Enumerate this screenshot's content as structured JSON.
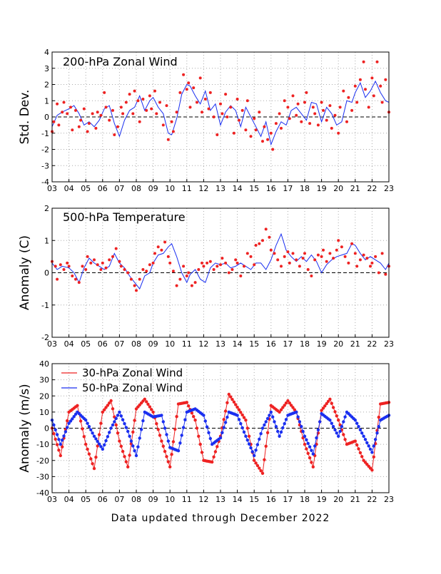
{
  "footer": "Data updated through December 2022",
  "x_ticks": [
    "03",
    "04",
    "05",
    "06",
    "07",
    "08",
    "09",
    "10",
    "11",
    "12",
    "13",
    "14",
    "15",
    "16",
    "17",
    "18",
    "19",
    "20",
    "21",
    "22",
    "23"
  ],
  "colors": {
    "red": "#ee2222",
    "blue": "#1a2ff0",
    "grid": "#aaaaaa"
  },
  "chart_data": [
    {
      "type": "scatter",
      "title": "200-hPa Zonal Wind",
      "ylabel": "Std. Dev.",
      "xlabel": "",
      "xlim": [
        2003,
        2023
      ],
      "ylim": [
        -4,
        4
      ],
      "y_ticks": [
        "4",
        "3",
        "2",
        "1",
        "0",
        "-1",
        "-2",
        "-3",
        "-4"
      ],
      "grid": true,
      "series": [
        {
          "name": "",
          "color": "#1a2ff0",
          "style": "line",
          "x": [
            2003.0,
            2003.3,
            2003.6,
            2004.0,
            2004.3,
            2004.6,
            2004.9,
            2005.2,
            2005.5,
            2005.8,
            2006.1,
            2006.4,
            2006.7,
            2007.0,
            2007.3,
            2007.6,
            2007.9,
            2008.2,
            2008.5,
            2008.8,
            2009.0,
            2009.3,
            2009.6,
            2009.9,
            2010.1,
            2010.4,
            2010.7,
            2011.0,
            2011.2,
            2011.5,
            2011.8,
            2012.1,
            2012.4,
            2012.7,
            2013.0,
            2013.3,
            2013.6,
            2013.9,
            2014.2,
            2014.5,
            2014.8,
            2015.1,
            2015.4,
            2015.7,
            2016.0,
            2016.3,
            2016.6,
            2016.9,
            2017.2,
            2017.5,
            2017.8,
            2018.1,
            2018.4,
            2018.7,
            2019.0,
            2019.3,
            2019.6,
            2019.9,
            2020.2,
            2020.5,
            2020.8,
            2021.0,
            2021.3,
            2021.6,
            2021.9,
            2022.2,
            2022.5,
            2022.8,
            2023.0
          ],
          "y": [
            -0.6,
            0.1,
            0.3,
            0.5,
            0.7,
            0.2,
            -0.5,
            -0.3,
            -0.6,
            -0.2,
            0.5,
            0.7,
            -0.4,
            -1.2,
            -0.2,
            0.4,
            0.6,
            1.3,
            0.4,
            1.0,
            1.2,
            0.6,
            0.2,
            -1.0,
            -1.1,
            -0.1,
            1.4,
            2.0,
            1.9,
            1.3,
            0.8,
            1.6,
            0.4,
            0.8,
            -0.5,
            0.3,
            0.7,
            0.4,
            -0.6,
            0.6,
            0.0,
            -0.6,
            -1.2,
            -0.3,
            -1.7,
            -0.9,
            -0.3,
            -0.5,
            0.4,
            0.6,
            0.2,
            -0.2,
            0.9,
            0.8,
            -0.3,
            0.6,
            0.2,
            -0.5,
            -0.3,
            1.0,
            0.9,
            1.5,
            2.1,
            1.2,
            1.6,
            2.2,
            1.5,
            1.0,
            0.9
          ]
        },
        {
          "name": "",
          "color": "#ee2222",
          "style": "points",
          "x": [
            2003.0,
            2003.1,
            2003.3,
            2003.4,
            2003.6,
            2003.7,
            2003.9,
            2004.1,
            2004.2,
            2004.4,
            2004.6,
            2004.7,
            2004.9,
            2005.1,
            2005.2,
            2005.4,
            2005.6,
            2005.7,
            2005.9,
            2006.1,
            2006.2,
            2006.4,
            2006.6,
            2006.7,
            2006.9,
            2007.1,
            2007.2,
            2007.4,
            2007.6,
            2007.8,
            2007.9,
            2008.1,
            2008.2,
            2008.4,
            2008.6,
            2008.8,
            2008.9,
            2009.1,
            2009.2,
            2009.4,
            2009.6,
            2009.8,
            2009.9,
            2010.1,
            2010.2,
            2010.4,
            2010.6,
            2010.8,
            2011.0,
            2011.1,
            2011.2,
            2011.4,
            2011.6,
            2011.8,
            2011.9,
            2012.1,
            2012.3,
            2012.4,
            2012.6,
            2012.8,
            2013.0,
            2013.1,
            2013.3,
            2013.4,
            2013.6,
            2013.8,
            2014.0,
            2014.1,
            2014.3,
            2014.5,
            2014.6,
            2014.8,
            2015.0,
            2015.1,
            2015.3,
            2015.5,
            2015.6,
            2015.8,
            2016.0,
            2016.1,
            2016.3,
            2016.5,
            2016.6,
            2016.8,
            2017.0,
            2017.1,
            2017.3,
            2017.5,
            2017.6,
            2017.8,
            2018.0,
            2018.1,
            2018.3,
            2018.5,
            2018.6,
            2018.8,
            2019.0,
            2019.1,
            2019.3,
            2019.5,
            2019.6,
            2019.8,
            2020.0,
            2020.1,
            2020.3,
            2020.5,
            2020.6,
            2020.8,
            2021.0,
            2021.1,
            2021.3,
            2021.5,
            2021.6,
            2021.8,
            2022.0,
            2022.1,
            2022.3,
            2022.5,
            2022.6,
            2022.8,
            2023.0
          ],
          "y": [
            -0.9,
            -0.3,
            0.8,
            -0.5,
            0.3,
            0.9,
            0.2,
            0.6,
            -0.8,
            0.4,
            -0.6,
            -0.2,
            0.5,
            -0.9,
            -0.4,
            0.2,
            -0.7,
            0.3,
            0.1,
            1.5,
            0.6,
            -0.2,
            0.4,
            -1.1,
            -0.6,
            0.6,
            0.2,
            0.9,
            1.4,
            0.2,
            1.6,
            1.0,
            -0.3,
            1.1,
            0.4,
            1.3,
            0.5,
            1.6,
            0.2,
            0.9,
            -0.5,
            0.7,
            -1.4,
            -0.3,
            -0.9,
            0.3,
            1.5,
            2.6,
            1.7,
            2.1,
            0.6,
            1.8,
            0.9,
            2.4,
            0.3,
            1.1,
            0.5,
            1.5,
            0.0,
            -1.1,
            0.8,
            0.2,
            1.4,
            0.0,
            0.6,
            -1.0,
            1.1,
            -0.2,
            0.4,
            -0.8,
            1.0,
            -1.2,
            -0.1,
            -0.8,
            0.3,
            -1.5,
            -0.6,
            -1.4,
            -1.0,
            -2.0,
            -0.4,
            0.2,
            -0.7,
            1.0,
            0.6,
            -0.1,
            1.3,
            0.1,
            0.8,
            -0.3,
            0.9,
            1.5,
            -0.4,
            0.6,
            0.2,
            -0.5,
            0.9,
            0.4,
            -0.2,
            0.7,
            -0.7,
            0.1,
            -1.0,
            0.6,
            1.6,
            -0.3,
            1.2,
            0.4,
            1.9,
            0.9,
            2.3,
            3.4,
            1.7,
            0.6,
            2.4,
            1.3,
            3.4,
            1.9,
            0.9,
            2.3,
            0.3
          ]
        }
      ]
    },
    {
      "type": "scatter",
      "title": "500-hPa Temperature",
      "ylabel": "Anomaly (C)",
      "xlabel": "",
      "xlim": [
        2003,
        2023
      ],
      "ylim": [
        -2,
        2
      ],
      "y_ticks": [
        "2",
        "1",
        "0",
        "-1",
        "-2"
      ],
      "grid": true,
      "series": [
        {
          "name": "",
          "color": "#1a2ff0",
          "style": "line",
          "x": [
            2003.0,
            2003.3,
            2003.6,
            2004.0,
            2004.3,
            2004.6,
            2004.9,
            2005.2,
            2005.5,
            2005.8,
            2006.1,
            2006.4,
            2006.7,
            2007.0,
            2007.3,
            2007.6,
            2007.9,
            2008.2,
            2008.5,
            2008.8,
            2009.0,
            2009.3,
            2009.6,
            2009.9,
            2010.1,
            2010.4,
            2010.7,
            2011.0,
            2011.2,
            2011.5,
            2011.8,
            2012.1,
            2012.4,
            2012.7,
            2013.0,
            2013.3,
            2013.6,
            2013.9,
            2014.2,
            2014.5,
            2014.8,
            2015.1,
            2015.4,
            2015.7,
            2016.0,
            2016.3,
            2016.6,
            2016.9,
            2017.2,
            2017.5,
            2017.8,
            2018.1,
            2018.4,
            2018.7,
            2019.0,
            2019.3,
            2019.6,
            2019.9,
            2020.2,
            2020.5,
            2020.8,
            2021.0,
            2021.3,
            2021.6,
            2021.9,
            2022.2,
            2022.5,
            2022.8,
            2023.0
          ],
          "y": [
            0.3,
            0.1,
            0.2,
            0.15,
            0.0,
            -0.3,
            0.15,
            0.45,
            0.3,
            0.2,
            0.1,
            0.2,
            0.6,
            0.3,
            0.15,
            -0.1,
            -0.3,
            -0.5,
            -0.1,
            0.0,
            0.3,
            0.55,
            0.6,
            0.8,
            0.9,
            0.5,
            0.0,
            -0.3,
            -0.05,
            0.1,
            -0.2,
            -0.3,
            0.15,
            0.3,
            0.25,
            0.3,
            0.15,
            0.2,
            0.3,
            0.2,
            0.1,
            0.3,
            0.3,
            0.1,
            0.4,
            0.85,
            1.2,
            0.7,
            0.5,
            0.35,
            0.5,
            0.35,
            0.55,
            0.35,
            0.0,
            0.25,
            0.4,
            0.5,
            0.55,
            0.6,
            0.9,
            0.85,
            0.6,
            0.4,
            0.5,
            0.4,
            0.3,
            0.1,
            0.3
          ]
        },
        {
          "name": "",
          "color": "#ee2222",
          "style": "points",
          "x": [
            2003.0,
            2003.2,
            2003.3,
            2003.5,
            2003.7,
            2003.9,
            2004.0,
            2004.2,
            2004.4,
            2004.6,
            2004.8,
            2005.0,
            2005.1,
            2005.3,
            2005.5,
            2005.7,
            2005.9,
            2006.0,
            2006.2,
            2006.4,
            2006.6,
            2006.8,
            2007.0,
            2007.1,
            2007.3,
            2007.5,
            2007.7,
            2007.9,
            2008.0,
            2008.2,
            2008.4,
            2008.6,
            2008.8,
            2009.0,
            2009.1,
            2009.3,
            2009.5,
            2009.7,
            2009.9,
            2010.0,
            2010.2,
            2010.4,
            2010.6,
            2010.8,
            2011.0,
            2011.1,
            2011.3,
            2011.5,
            2011.7,
            2011.9,
            2012.0,
            2012.2,
            2012.4,
            2012.6,
            2012.8,
            2013.0,
            2013.1,
            2013.3,
            2013.5,
            2013.7,
            2013.9,
            2014.0,
            2014.2,
            2014.4,
            2014.6,
            2014.8,
            2015.0,
            2015.1,
            2015.3,
            2015.5,
            2015.7,
            2015.9,
            2016.0,
            2016.2,
            2016.4,
            2016.6,
            2016.8,
            2017.0,
            2017.1,
            2017.3,
            2017.5,
            2017.7,
            2017.9,
            2018.0,
            2018.2,
            2018.4,
            2018.6,
            2018.8,
            2019.0,
            2019.1,
            2019.3,
            2019.5,
            2019.7,
            2019.9,
            2020.0,
            2020.2,
            2020.4,
            2020.6,
            2020.8,
            2021.0,
            2021.1,
            2021.3,
            2021.5,
            2021.7,
            2021.9,
            2022.0,
            2022.2,
            2022.4,
            2022.6,
            2022.8,
            2023.0
          ],
          "y": [
            0.35,
            0.2,
            -0.2,
            0.25,
            0.1,
            0.3,
            0.2,
            -0.1,
            -0.2,
            -0.3,
            0.2,
            0.1,
            0.5,
            0.3,
            0.4,
            0.25,
            0.1,
            0.3,
            0.15,
            0.4,
            0.5,
            0.75,
            0.35,
            0.2,
            0.1,
            0.0,
            -0.2,
            -0.4,
            -0.55,
            -0.2,
            0.1,
            0.05,
            0.25,
            0.3,
            0.6,
            0.8,
            0.7,
            0.95,
            0.5,
            0.3,
            0.05,
            -0.4,
            -0.2,
            0.2,
            -0.1,
            0.0,
            -0.4,
            -0.3,
            0.1,
            0.3,
            0.2,
            0.3,
            0.35,
            0.1,
            0.2,
            0.25,
            0.45,
            0.3,
            0.0,
            0.1,
            0.4,
            0.3,
            -0.1,
            0.2,
            0.6,
            0.5,
            0.25,
            0.85,
            0.9,
            1.0,
            1.35,
            1.1,
            0.7,
            0.6,
            0.4,
            0.2,
            0.5,
            0.65,
            0.3,
            0.6,
            0.4,
            0.2,
            0.45,
            0.6,
            0.1,
            -0.1,
            0.4,
            0.55,
            0.5,
            0.7,
            0.35,
            0.6,
            0.45,
            0.7,
            1.0,
            0.8,
            0.5,
            0.3,
            0.9,
            0.6,
            0.2,
            0.4,
            0.55,
            0.45,
            0.2,
            0.3,
            0.5,
            0.0,
            0.6,
            -0.05,
            0.2
          ]
        }
      ]
    },
    {
      "type": "line",
      "title": "",
      "ylabel": "Anomaly (m/s)",
      "xlabel": "",
      "xlim": [
        2003,
        2023
      ],
      "ylim": [
        -40,
        40
      ],
      "y_ticks": [
        "40",
        "30",
        "20",
        "10",
        "0",
        "-10",
        "-20",
        "-30",
        "-40"
      ],
      "grid": true,
      "legend_position": "top-left",
      "series": [
        {
          "name": "30-hPa Zonal Wind",
          "color": "#ee2222",
          "x": [
            2003.0,
            2003.5,
            2004.0,
            2004.5,
            2005.0,
            2005.5,
            2006.0,
            2006.5,
            2007.0,
            2007.5,
            2008.0,
            2008.5,
            2009.0,
            2009.5,
            2010.0,
            2010.5,
            2011.0,
            2011.5,
            2012.0,
            2012.5,
            2013.0,
            2013.5,
            2014.0,
            2014.5,
            2015.0,
            2015.5,
            2016.0,
            2016.5,
            2017.0,
            2017.5,
            2018.0,
            2018.5,
            2019.0,
            2019.5,
            2020.0,
            2020.5,
            2021.0,
            2021.5,
            2022.0,
            2022.5,
            2023.0
          ],
          "y": [
            0,
            -17,
            10,
            14,
            -10,
            -25,
            10,
            17,
            -8,
            -24,
            12,
            18,
            10,
            -8,
            -24,
            15,
            16,
            5,
            -20,
            -21,
            -5,
            21,
            13,
            5,
            -20,
            -28,
            14,
            10,
            17,
            10,
            -10,
            -24,
            11,
            18,
            5,
            -10,
            -8,
            -20,
            -26,
            15,
            16
          ]
        },
        {
          "name": "50-hPa Zonal Wind",
          "color": "#1a2ff0",
          "x": [
            2003.0,
            2003.5,
            2004.0,
            2004.5,
            2005.0,
            2005.5,
            2006.0,
            2006.5,
            2007.0,
            2007.5,
            2008.0,
            2008.5,
            2009.0,
            2009.5,
            2010.0,
            2010.5,
            2011.0,
            2011.5,
            2012.0,
            2012.5,
            2013.0,
            2013.5,
            2014.0,
            2014.5,
            2015.0,
            2015.5,
            2016.0,
            2016.5,
            2017.0,
            2017.5,
            2018.0,
            2018.5,
            2019.0,
            2019.5,
            2020.0,
            2020.5,
            2021.0,
            2021.5,
            2022.0,
            2022.5,
            2023.0
          ],
          "y": [
            5,
            -10,
            3,
            10,
            5,
            -5,
            -13,
            0,
            10,
            -2,
            -17,
            10,
            7,
            8,
            -12,
            -14,
            10,
            12,
            8,
            -10,
            -6,
            10,
            8,
            -5,
            -17,
            0,
            10,
            -5,
            8,
            10,
            -5,
            -16,
            9,
            5,
            -5,
            10,
            5,
            -5,
            -15,
            5,
            8
          ]
        }
      ]
    }
  ]
}
